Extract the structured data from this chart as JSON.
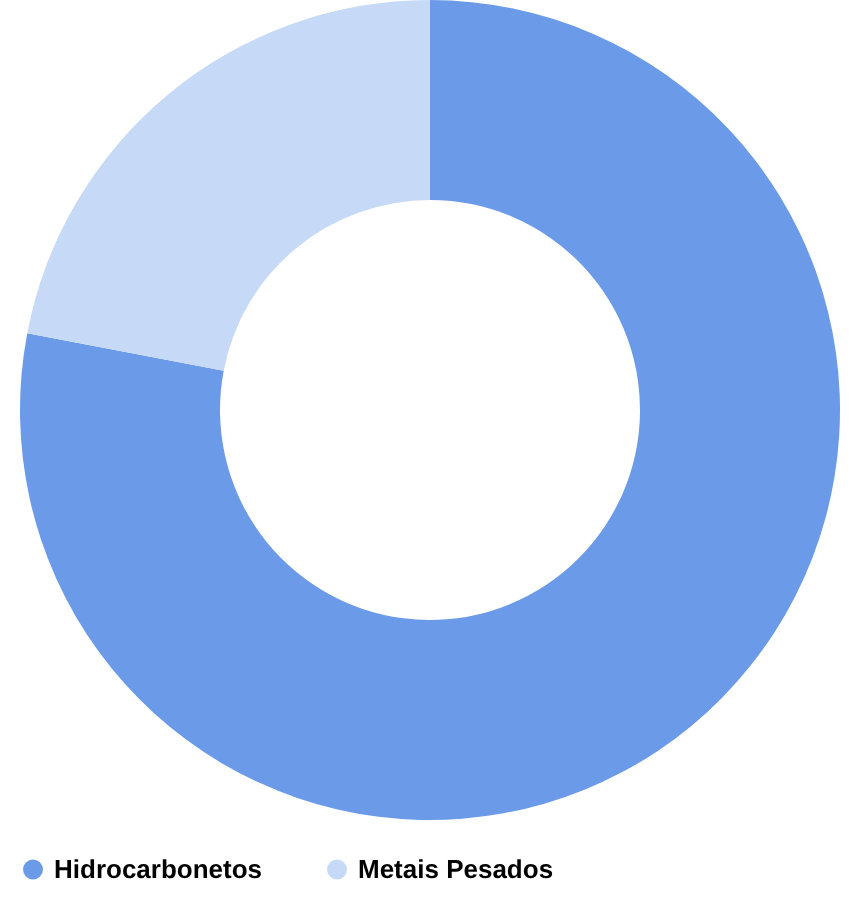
{
  "chart_data": {
    "type": "donut",
    "categories": [
      "Hidrocarbonetos",
      "Metais Pesados"
    ],
    "values": [
      78,
      22
    ],
    "colors": [
      "#6b9be8",
      "#c6d9f6"
    ],
    "legend": "bottom"
  }
}
